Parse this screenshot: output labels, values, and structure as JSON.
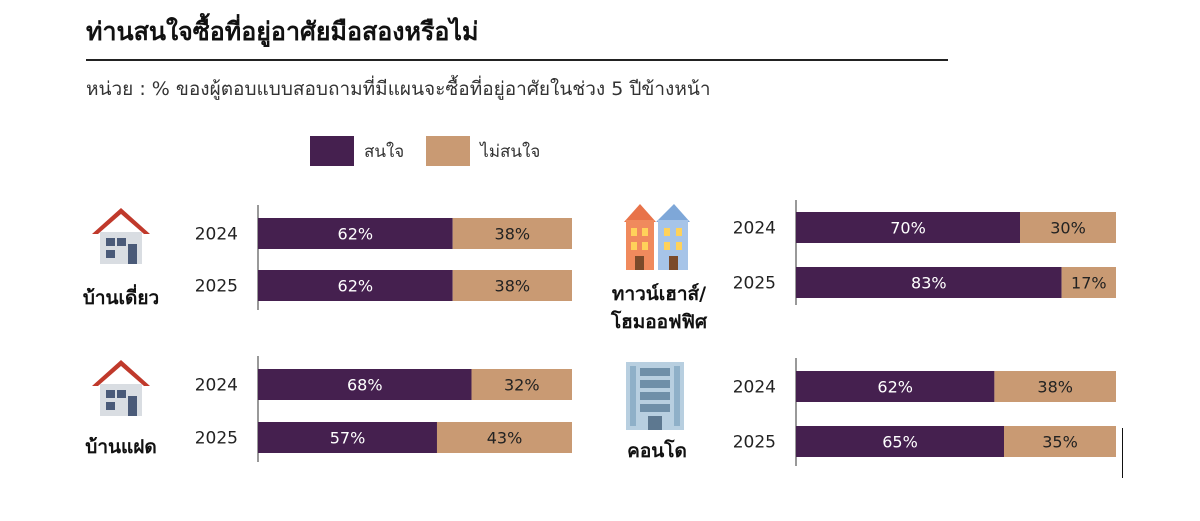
{
  "title": "ท่านสนใจซื้อที่อยู่อาศัยมือสองหรือไม่",
  "subtitle": "หน่วย : % ของผู้ตอบแบบสอบถามที่มีแผนจะซื้อที่อยู่อาศัยในช่วง 5 ปีข้างหน้า",
  "legend": {
    "interested": "สนใจ",
    "not_interested": "ไม่สนใจ"
  },
  "colors": {
    "interested": "#45204f",
    "not_interested": "#c99a73",
    "roof": "#c0392b",
    "wall": "#d9dde2",
    "building": "#a8c3d6"
  },
  "icons": {
    "detached_house": "house-icon",
    "townhouse": "townhouse-icon",
    "twin_house": "house-icon",
    "condo": "building-icon"
  },
  "chart_data": [
    {
      "type": "bar",
      "orientation": "horizontal",
      "stacked": true,
      "title": "บ้านเดี่ยว",
      "categories": [
        "2024",
        "2025"
      ],
      "series": [
        {
          "name": "สนใจ",
          "values": [
            62,
            62
          ]
        },
        {
          "name": "ไม่สนใจ",
          "values": [
            38,
            38
          ]
        }
      ]
    },
    {
      "type": "bar",
      "orientation": "horizontal",
      "stacked": true,
      "title": "ทาวน์เฮาส์/โฮมออฟฟิศ",
      "categories": [
        "2024",
        "2025"
      ],
      "series": [
        {
          "name": "สนใจ",
          "values": [
            70,
            83
          ]
        },
        {
          "name": "ไม่สนใจ",
          "values": [
            30,
            17
          ]
        }
      ]
    },
    {
      "type": "bar",
      "orientation": "horizontal",
      "stacked": true,
      "title": "บ้านแฝด",
      "categories": [
        "2024",
        "2025"
      ],
      "series": [
        {
          "name": "สนใจ",
          "values": [
            68,
            57
          ]
        },
        {
          "name": "ไม่สนใจ",
          "values": [
            32,
            43
          ]
        }
      ]
    },
    {
      "type": "bar",
      "orientation": "horizontal",
      "stacked": true,
      "title": "คอนโด",
      "categories": [
        "2024",
        "2025"
      ],
      "series": [
        {
          "name": "สนใจ",
          "values": [
            62,
            65
          ]
        },
        {
          "name": "ไม่สนใจ",
          "values": [
            38,
            35
          ]
        }
      ]
    }
  ]
}
